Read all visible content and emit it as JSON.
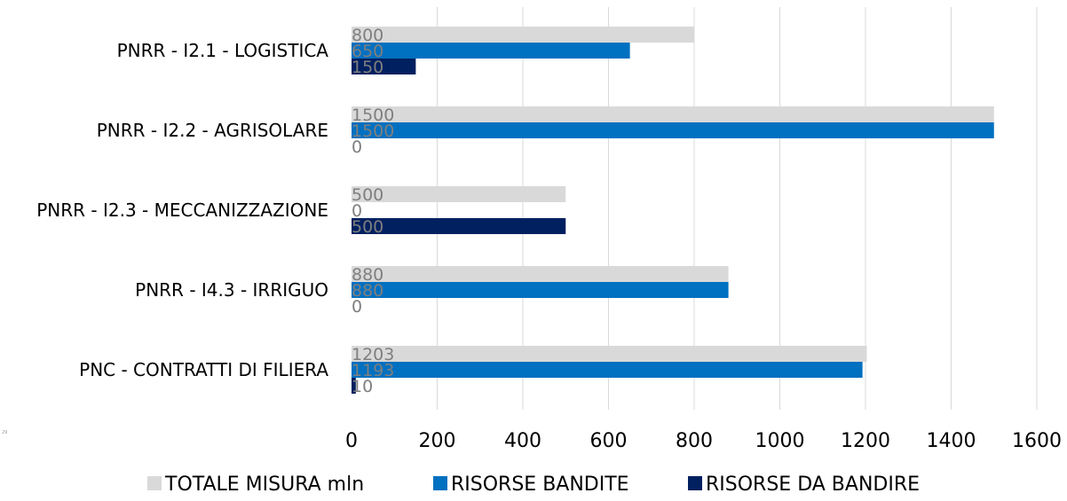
{
  "chart_data": {
    "type": "bar",
    "orientation": "horizontal",
    "categories": [
      "PNRR - I2.1 - LOGISTICA",
      "PNRR - I2.2 - AGRISOLARE",
      "PNRR - I2.3 - MECCANIZZAZIONE",
      "PNRR - I4.3 - IRRIGUO",
      "PNC - CONTRATTI DI FILIERA"
    ],
    "series": [
      {
        "name": "TOTALE MISURA mln",
        "color": "#d9d9d9",
        "values": [
          800,
          1500,
          500,
          880,
          1203
        ]
      },
      {
        "name": "RISORSE BANDITE",
        "color": "#0070c0",
        "values": [
          650,
          1500,
          0,
          880,
          1193
        ]
      },
      {
        "name": "RISORSE DA BANDIRE",
        "color": "#002060",
        "values": [
          150,
          0,
          500,
          0,
          10
        ]
      }
    ],
    "xlim": [
      0,
      1600
    ],
    "x_ticks": [
      0,
      200,
      400,
      600,
      800,
      1000,
      1200,
      1400,
      1600
    ],
    "grid": "vertical",
    "legend_position": "bottom",
    "data_labels": true
  },
  "page_note": "29"
}
